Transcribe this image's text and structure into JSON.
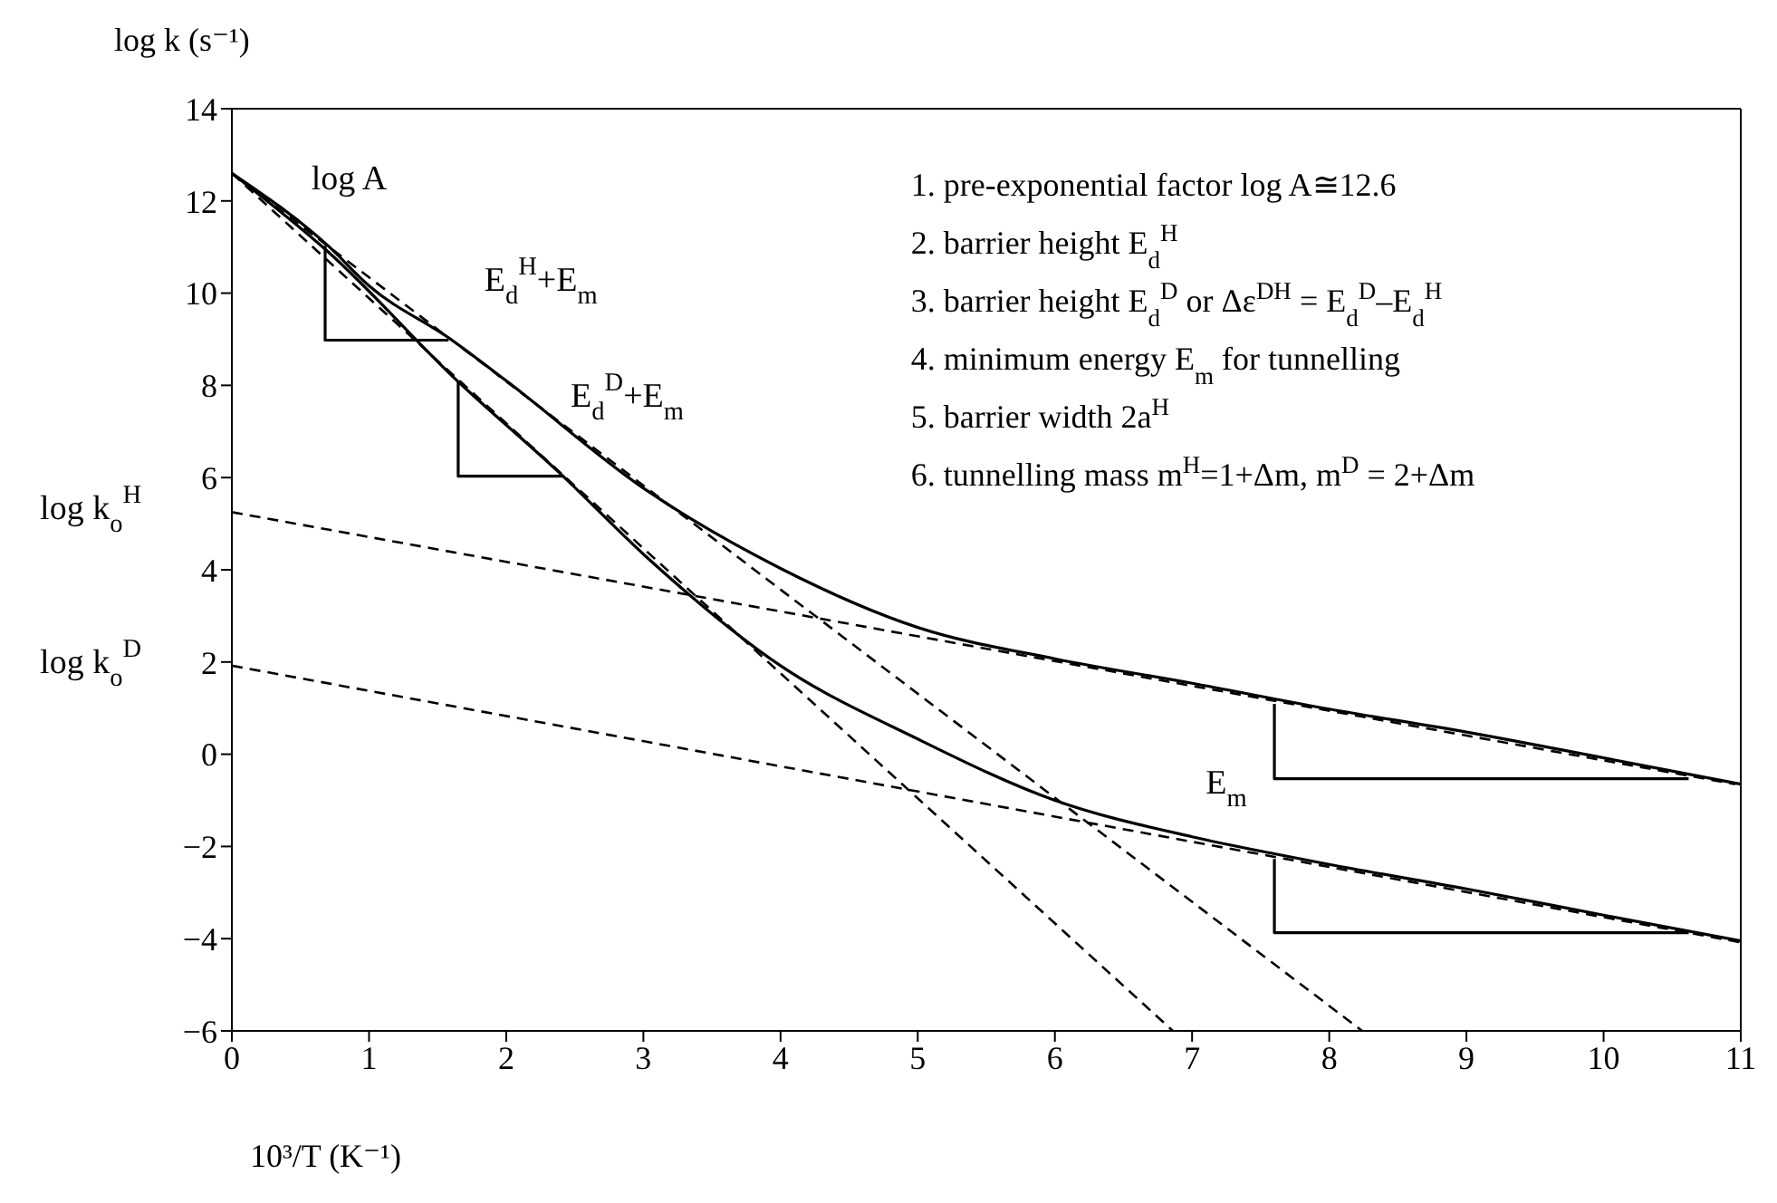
{
  "chart_data": {
    "type": "line",
    "ylabel": "log k (s⁻¹)",
    "xlabel": "10³/T (K⁻¹)",
    "xlim": [
      0,
      11
    ],
    "xticks": [
      0,
      1,
      2,
      3,
      4,
      5,
      6,
      7,
      8,
      9,
      10,
      11
    ],
    "ylim": [
      -6,
      14
    ],
    "yticks": [
      -6,
      -4,
      -2,
      0,
      2,
      4,
      6,
      8,
      10,
      12,
      14
    ],
    "marker": "none",
    "series": [
      {
        "color": "#000000",
        "line_style": "solid",
        "x": [
          0,
          0.7,
          1,
          1.6,
          2,
          3,
          4,
          5,
          6,
          7,
          8,
          9,
          10,
          11
        ],
        "values": [
          12.6,
          11.03,
          10.16,
          8.99,
          8.1,
          5.77,
          4.03,
          2.75,
          2.07,
          1.54,
          0.98,
          0.48,
          -0.08,
          -0.65
        ]
      },
      {
        "color": "#000000",
        "line_style": "solid",
        "x": [
          0,
          0.7,
          1.65,
          2.4,
          3,
          4,
          5,
          6,
          7,
          7.6,
          8,
          9,
          10,
          11
        ],
        "values": [
          12.6,
          10.9,
          8.08,
          6.07,
          4.34,
          1.92,
          0.33,
          -1.0,
          -1.79,
          -2.16,
          -2.39,
          -2.92,
          -3.49,
          -4.05
        ]
      },
      {
        "color": "#000000",
        "line_style": "dashed",
        "x": [
          0,
          6.86
        ],
        "values": [
          12.6,
          -6
        ]
      },
      {
        "color": "#000000",
        "line_style": "dashed",
        "x": [
          0,
          8.24
        ],
        "values": [
          12.6,
          -6
        ]
      },
      {
        "color": "#000000",
        "line_style": "dashed",
        "x": [
          0,
          10.96
        ],
        "values": [
          5.25,
          -0.65
        ]
      },
      {
        "color": "#000000",
        "line_style": "dashed",
        "x": [
          0,
          11
        ],
        "values": [
          1.92,
          -4.08
        ]
      },
      {
        "color": "#000000",
        "line_style": "solid",
        "x": [
          0.68,
          0.68,
          1.58
        ],
        "values": [
          11.03,
          8.98,
          8.98
        ]
      },
      {
        "color": "#000000",
        "line_style": "solid",
        "x": [
          1.65,
          1.65,
          2.42
        ],
        "values": [
          8.08,
          6.03,
          6.03
        ]
      },
      {
        "color": "#000000",
        "line_style": "solid",
        "x": [
          7.6,
          7.6,
          10.62
        ],
        "values": [
          1.09,
          -0.53,
          -0.53
        ]
      },
      {
        "color": "#000000",
        "line_style": "solid",
        "x": [
          7.6,
          7.6,
          10.62
        ],
        "values": [
          -2.27,
          -3.87,
          -3.87
        ]
      }
    ],
    "annotations": [
      "log A",
      "E$_{d}$$^{H}$+E$_{m}$",
      "E$_{d}$$^{D}$+E$_{m}$",
      "E$_{m}$",
      "log k$_{o}$$^{H}$",
      "log k$_{o}$$^{D}$",
      "1. pre-exponential factor  log A≅12.6",
      "2. barrier height E$_{d}$$^{H}$",
      "3. barrier height E$_{d}$$^{D}$ or Δε$^{DH}$ = E$_{d}$$^{D}$–E$_{d}$$^{H}$",
      "4. minimum energy E$_{m}$ for tunnelling",
      "5. barrier width 2a$^{H}$",
      "6. tunnelling mass m$^{H}$=1+Δm, m$^{D}$ = 2+Δm"
    ]
  }
}
